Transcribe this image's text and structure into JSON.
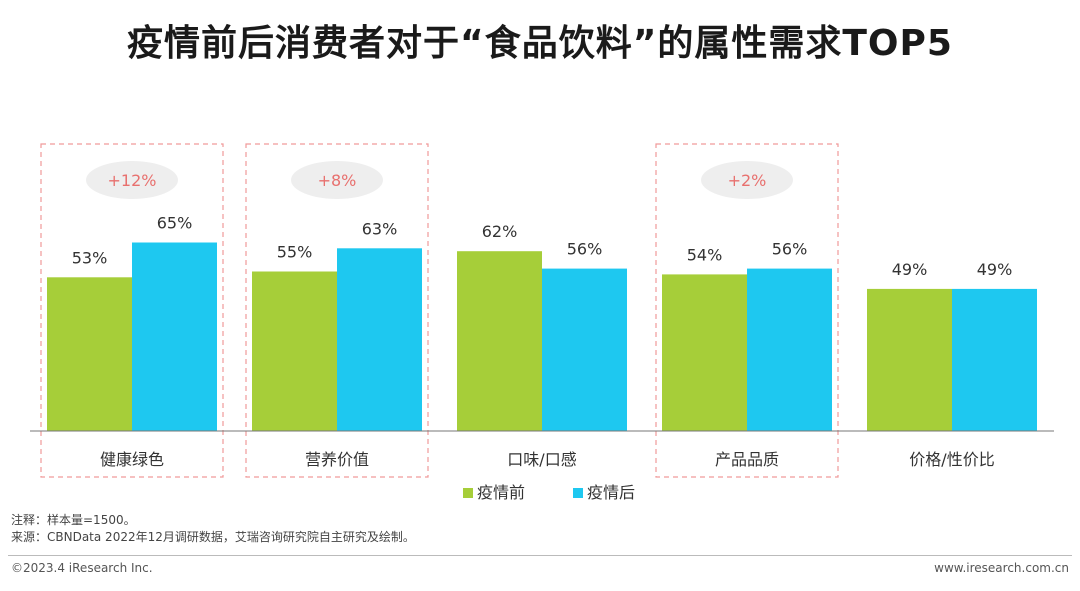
{
  "title": "疫情前后消费者对于“食品饮料”的属性需求TOP5",
  "notes": {
    "note": "注释：样本量=1500。",
    "source": "来源：CBNData 2022年12月调研数据，艾瑞咨询研究院自主研究及绘制。"
  },
  "footer": {
    "copyright": "©2023.4 iResearch Inc.",
    "website": "www.iresearch.com.cn"
  },
  "colors": {
    "before": "#a6ce39",
    "after": "#1ec8f0",
    "highlight_border": "#f09a9a",
    "diff_pill_bg": "#eeeeee",
    "diff_text": "#e8706e"
  },
  "chart_data": {
    "type": "bar",
    "title": "疫情前后消费者对于“食品饮料”的属性需求TOP5",
    "categories": [
      "健康绿色",
      "营养价值",
      "口味/口感",
      "产品品质",
      "价格/性价比"
    ],
    "series": [
      {
        "name": "疫情前",
        "values": [
          53,
          55,
          62,
          54,
          49
        ]
      },
      {
        "name": "疫情后",
        "values": [
          65,
          63,
          56,
          56,
          49
        ]
      }
    ],
    "value_labels": {
      "疫情前": [
        "53%",
        "55%",
        "62%",
        "54%",
        "49%"
      ],
      "疫情后": [
        "65%",
        "63%",
        "56%",
        "56%",
        "49%"
      ]
    },
    "highlights": [
      {
        "category": "健康绿色",
        "label": "+12%"
      },
      {
        "category": "营养价值",
        "label": "+8%"
      },
      {
        "category": "产品品质",
        "label": "+2%"
      }
    ],
    "ylim": [
      0,
      100
    ],
    "unit": "%",
    "grid": false,
    "legend": "bottom-center"
  }
}
